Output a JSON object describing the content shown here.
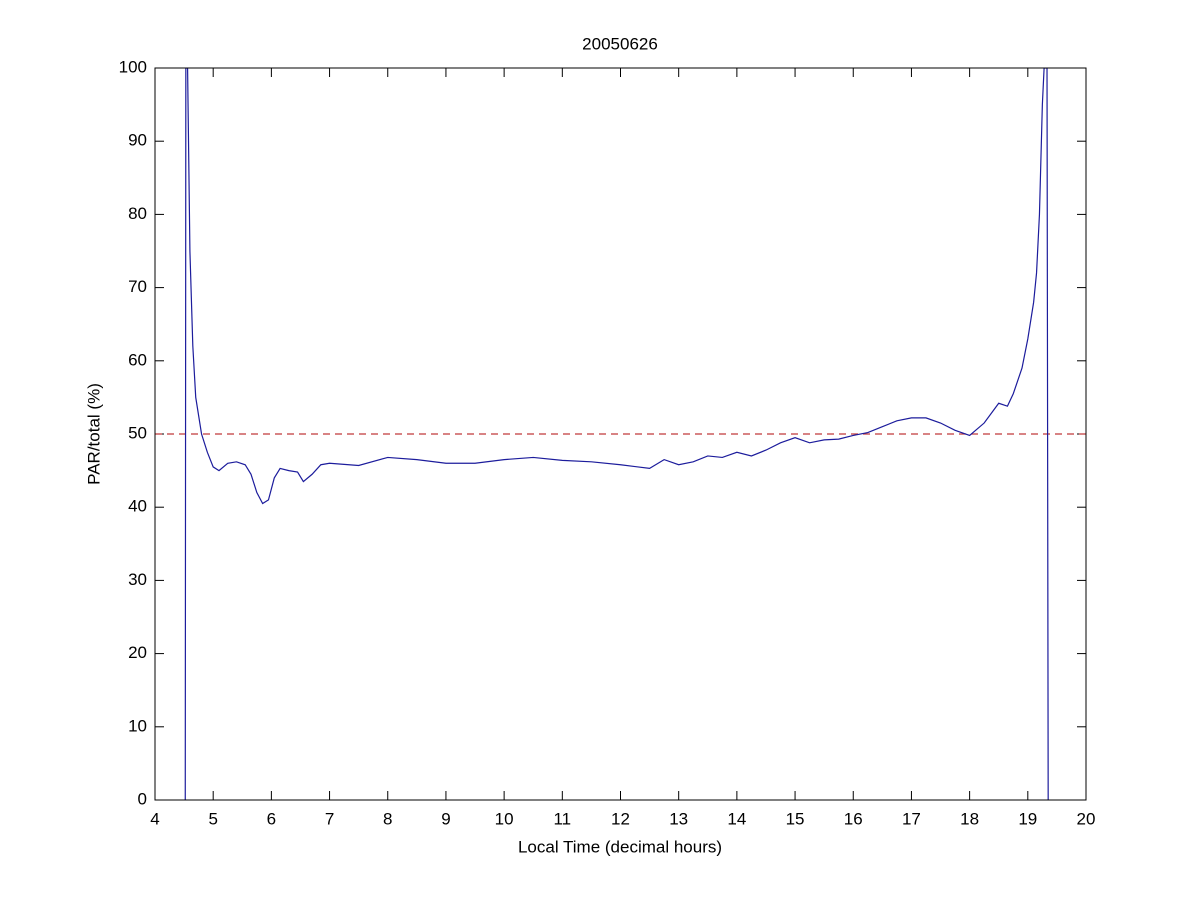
{
  "chart_data": {
    "type": "line",
    "title": "20050626",
    "xlabel": "Local Time (decimal hours)",
    "ylabel": "PAR/total (%)",
    "x": [
      4.52,
      4.53,
      4.56,
      4.6,
      4.65,
      4.7,
      4.8,
      4.9,
      5.0,
      5.1,
      5.25,
      5.4,
      5.55,
      5.65,
      5.75,
      5.85,
      5.95,
      6.05,
      6.15,
      6.3,
      6.45,
      6.55,
      6.7,
      6.85,
      7,
      7.5,
      8,
      8.5,
      9,
      9.5,
      10,
      10.5,
      11,
      11.5,
      12,
      12.5,
      12.75,
      13,
      13.25,
      13.5,
      13.75,
      14,
      14.25,
      14.5,
      14.75,
      15,
      15.25,
      15.5,
      15.75,
      16,
      16.25,
      16.5,
      16.75,
      17,
      17.25,
      17.5,
      17.75,
      18,
      18.25,
      18.5,
      18.65,
      18.75,
      18.9,
      19.0,
      19.1,
      19.15,
      19.2,
      19.25,
      19.28,
      19.33,
      19.35
    ],
    "series": [
      {
        "name": "PAR/total",
        "color": "#1c1c9c",
        "values": [
          0,
          100,
          100,
          75,
          62,
          55,
          50,
          47.5,
          45.5,
          45,
          46,
          46.2,
          45.8,
          44.5,
          42,
          40.5,
          41,
          44,
          45.3,
          45,
          44.8,
          43.5,
          44.5,
          45.8,
          46,
          45.7,
          46.8,
          46.5,
          46,
          46,
          46.5,
          46.8,
          46.4,
          46.2,
          45.8,
          45.3,
          46.5,
          45.8,
          46.2,
          47,
          46.8,
          47.5,
          47,
          47.8,
          48.8,
          49.5,
          48.8,
          49.2,
          49.3,
          49.8,
          50.2,
          51,
          51.8,
          52.2,
          52.2,
          51.5,
          50.5,
          49.8,
          51.5,
          54.2,
          53.8,
          55.5,
          59,
          63,
          68,
          72,
          80,
          95,
          100,
          100,
          0
        ]
      }
    ],
    "reference_line": {
      "value": 50,
      "color": "#c0393b",
      "style": "dashed"
    },
    "xlim": [
      4,
      20
    ],
    "xticks": [
      4,
      5,
      6,
      7,
      8,
      9,
      10,
      11,
      12,
      13,
      14,
      15,
      16,
      17,
      18,
      19,
      20
    ],
    "ylim": [
      0,
      100
    ],
    "yticks": [
      0,
      10,
      20,
      30,
      40,
      50,
      60,
      70,
      80,
      90,
      100
    ],
    "grid": false
  }
}
